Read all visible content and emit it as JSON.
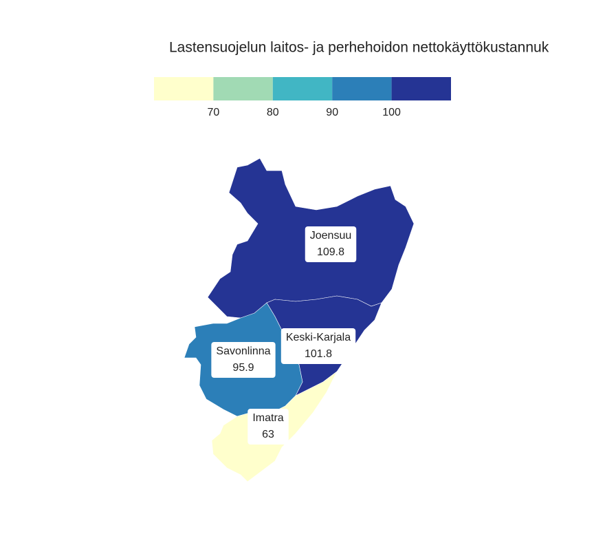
{
  "chart_data": {
    "type": "choropleth",
    "title": "Lastensuojelun laitos- ja perhehoidon nettokäyttökustannuk",
    "legend": {
      "colors": [
        "#ffffcc",
        "#a1dab4",
        "#41b6c4",
        "#2c7fb8",
        "#253494"
      ],
      "xlim": [
        60,
        110
      ],
      "ticks": [
        70,
        80,
        90,
        100
      ]
    },
    "regions": [
      {
        "name": "Joensuu",
        "value": 109.8
      },
      {
        "name": "Keski-Karjala",
        "value": 101.8
      },
      {
        "name": "Savonlinna",
        "value": 95.9
      },
      {
        "name": "Imatra",
        "value": 63
      }
    ]
  }
}
